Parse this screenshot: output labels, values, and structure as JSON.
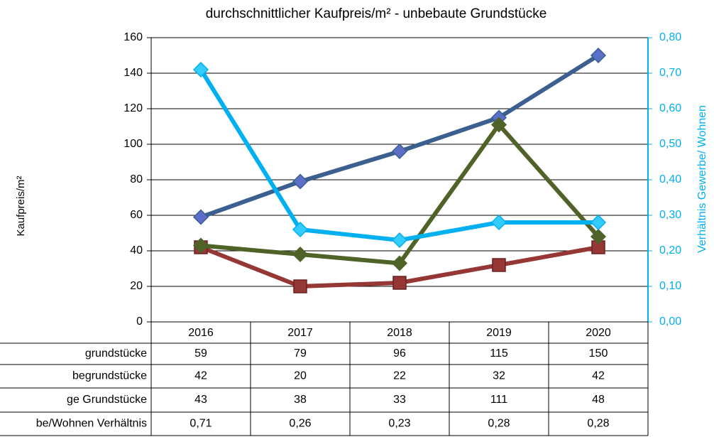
{
  "chart_data": {
    "type": "line",
    "title": "durchschnittlicher Kaufpreis/m²  - unbebaute Grundstücke",
    "y_label": "Kaufpreis/m²",
    "y2_label": "Verhältnis Gewerbe/ Wohnen",
    "categories": [
      "2016",
      "2017",
      "2018",
      "2019",
      "2020"
    ],
    "series": [
      {
        "name": "grundstücke",
        "color": "#3b5f8f",
        "marker": "diamond",
        "marker_color": "#5b6ec8",
        "values": [
          59,
          79,
          96,
          115,
          150
        ]
      },
      {
        "name": "begrundstücke",
        "color": "#953735",
        "marker": "square",
        "marker_color": "#953735",
        "values": [
          42,
          20,
          22,
          32,
          42
        ]
      },
      {
        "name": "ge Grundstücke",
        "color": "#4f6228",
        "marker": "diamond",
        "marker_color": "#4f6228",
        "values": [
          43,
          38,
          33,
          111,
          48
        ]
      },
      {
        "name": "be/Wohnen Verhältnis",
        "color": "#00b0f0",
        "marker": "diamond",
        "marker_color": "#33ccff",
        "axis": "y2",
        "values": [
          0.71,
          0.26,
          0.23,
          0.28,
          0.28
        ],
        "value_labels": [
          "0,71",
          "0,26",
          "0,23",
          "0,28",
          "0,28"
        ]
      }
    ],
    "ylim": [
      0,
      160
    ],
    "yticks": [
      0,
      20,
      40,
      60,
      80,
      100,
      120,
      140,
      160
    ],
    "y2lim": [
      0,
      0.8
    ],
    "y2ticks": [
      {
        "value": 0,
        "label": "0,00"
      },
      {
        "value": 0.1,
        "label": "0,10"
      },
      {
        "value": 0.2,
        "label": "0,20"
      },
      {
        "value": 0.3,
        "label": "0,30"
      },
      {
        "value": 0.4,
        "label": "0,40"
      },
      {
        "value": 0.5,
        "label": "0,50"
      },
      {
        "value": 0.6,
        "label": "0,60"
      },
      {
        "value": 0.7,
        "label": "0,70"
      },
      {
        "value": 0.8,
        "label": "0,80"
      }
    ],
    "y2_color": "#00b0f0",
    "grid": true
  }
}
